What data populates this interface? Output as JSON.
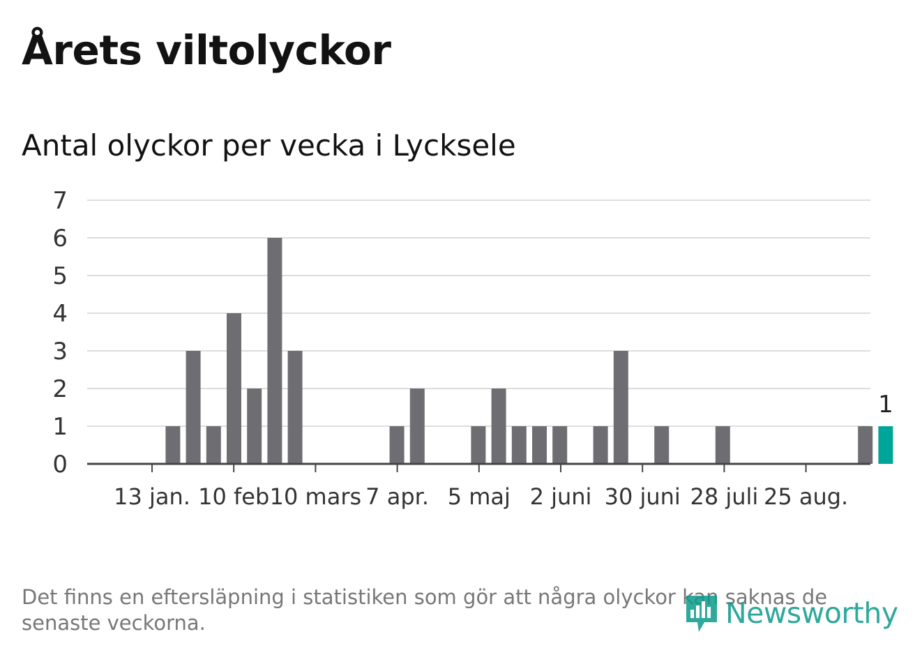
{
  "title": "Årets viltolyckor",
  "subtitle": "Antal olyckor per vecka i Lycksele",
  "footnote": "Det finns en eftersläpning i statistiken som gör att några olyckor kan saknas de senaste veckorna.",
  "logo": {
    "text": "Newsworthy",
    "icon": "bar-chart-speech-bubble-icon",
    "color": "#0a9a8a"
  },
  "colors": {
    "bar": "#6e6d72",
    "highlight": "#00a59a",
    "grid": "#dddddd",
    "axis": "#444444",
    "text": "#333333"
  },
  "chart_data": {
    "type": "bar",
    "x_unit": "week",
    "y_ticks": [
      0,
      1,
      2,
      3,
      4,
      5,
      6,
      7
    ],
    "ylim": [
      0,
      7
    ],
    "grid": true,
    "x_tick_labels": [
      "13 jan.",
      "10 feb",
      "10 mars",
      "7 apr.",
      "5 maj",
      "2 juni",
      "30 juni",
      "28 juli",
      "25 aug."
    ],
    "values": [
      0,
      0,
      1,
      3,
      1,
      4,
      2,
      6,
      3,
      0,
      0,
      0,
      0,
      1,
      2,
      0,
      0,
      1,
      2,
      1,
      1,
      1,
      0,
      1,
      3,
      0,
      1,
      0,
      0,
      1,
      0,
      0,
      0,
      0,
      0,
      0,
      1,
      1
    ],
    "highlight_index": 37,
    "highlight_label": "1"
  }
}
